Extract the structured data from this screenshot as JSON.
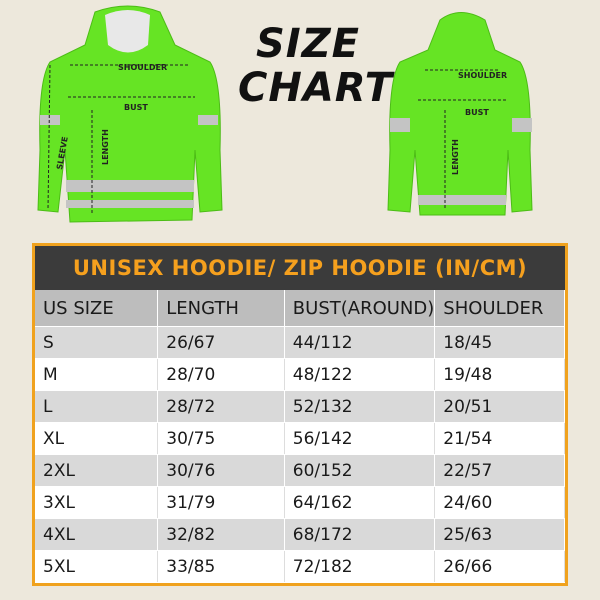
{
  "header": {
    "title_line1": "SIZE",
    "title_line2": "CHART"
  },
  "front": {
    "shoulder": "SHOULDER",
    "bust": "BUST",
    "sleeve": "SLEEVE",
    "length": "LENGTH"
  },
  "back": {
    "shoulder": "SHOULDER",
    "bust": "BUST",
    "length": "LENGTH"
  },
  "table": {
    "title": "UNISEX HOODIE/ ZIP HOODIE (IN/CM)",
    "columns": [
      "US SIZE",
      "LENGTH",
      "BUST(AROUND)",
      "SHOULDER"
    ],
    "rows": [
      [
        "S",
        "26/67",
        "44/112",
        "18/45"
      ],
      [
        "M",
        "28/70",
        "48/122",
        "19/48"
      ],
      [
        "L",
        "28/72",
        "52/132",
        "20/51"
      ],
      [
        "XL",
        "30/75",
        "56/142",
        "21/54"
      ],
      [
        "2XL",
        "30/76",
        "60/152",
        "22/57"
      ],
      [
        "3XL",
        "31/79",
        "64/162",
        "24/60"
      ],
      [
        "4XL",
        "32/82",
        "68/172",
        "25/63"
      ],
      [
        "5XL",
        "33/85",
        "72/182",
        "26/66"
      ]
    ]
  }
}
